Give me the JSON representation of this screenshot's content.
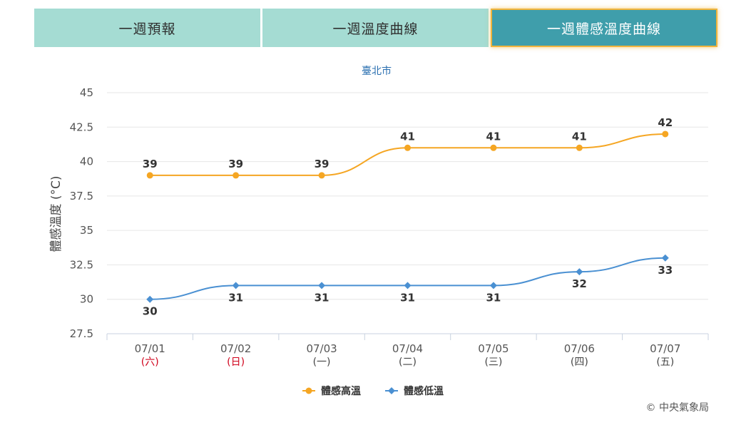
{
  "tabs": [
    {
      "label": "一週預報",
      "active": false
    },
    {
      "label": "一週溫度曲線",
      "active": false
    },
    {
      "label": "一週體感溫度曲線",
      "active": true
    }
  ],
  "chart_data": {
    "type": "line",
    "title": "臺北市",
    "ylabel": "體感溫度 (°C)",
    "ylim": [
      27.5,
      45
    ],
    "yticks": [
      27.5,
      30,
      32.5,
      35,
      37.5,
      40,
      42.5,
      45
    ],
    "categories": [
      "07/01",
      "07/02",
      "07/03",
      "07/04",
      "07/05",
      "07/06",
      "07/07"
    ],
    "weekdays": [
      "(六)",
      "(日)",
      "(一)",
      "(二)",
      "(三)",
      "(四)",
      "(五)"
    ],
    "weekend_color": "#d0021b",
    "weekday_color": "#444444",
    "grid": true,
    "legend_position": "bottom-center",
    "series": [
      {
        "name": "體感高溫",
        "values": [
          39,
          39,
          39,
          41,
          41,
          41,
          42
        ],
        "color": "#f5a623",
        "marker": "circle",
        "label_position": "above"
      },
      {
        "name": "體感低溫",
        "values": [
          30,
          31,
          31,
          31,
          31,
          32,
          33
        ],
        "color": "#4a90d2",
        "marker": "diamond",
        "label_position": "below"
      }
    ]
  },
  "copyright": "© 中央氣象局"
}
